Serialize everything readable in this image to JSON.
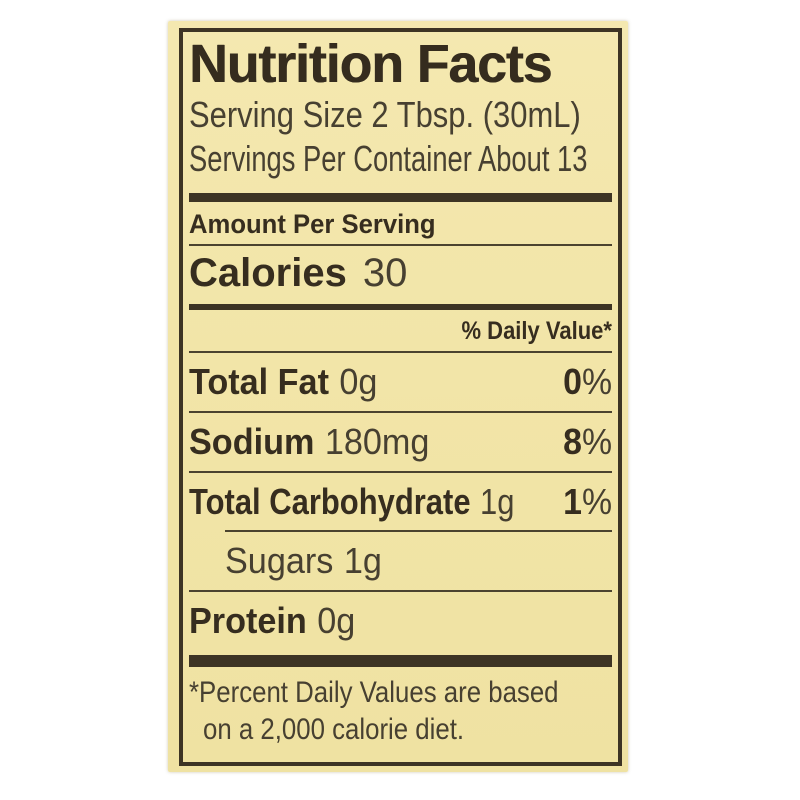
{
  "label": {
    "title": "Nutrition Facts",
    "serving_size": "Serving Size 2 Tbsp. (30mL)",
    "servings_per_container": "Servings Per Container About 13",
    "amount_per_serving": "Amount Per Serving",
    "calories": {
      "label": "Calories",
      "value": "30"
    },
    "daily_value_header": "% Daily Value*",
    "percent_sign": "%",
    "nutrients": [
      {
        "name": "Total Fat",
        "amount": "0g",
        "daily_value": "0"
      },
      {
        "name": "Sodium",
        "amount": "180mg",
        "daily_value": "8"
      },
      {
        "name": "Total Carbohydrate",
        "amount": "1g",
        "daily_value": "1"
      },
      {
        "name": "Sugars",
        "amount": "1g"
      },
      {
        "name": "Protein",
        "amount": "0g"
      }
    ],
    "footnote": {
      "line1": "*Percent Daily Values are based",
      "line2": "on a 2,000 calorie diet."
    },
    "colors": {
      "paper": "#f2e5a8",
      "ink": "#362d1f",
      "background": "#ffffff"
    }
  }
}
